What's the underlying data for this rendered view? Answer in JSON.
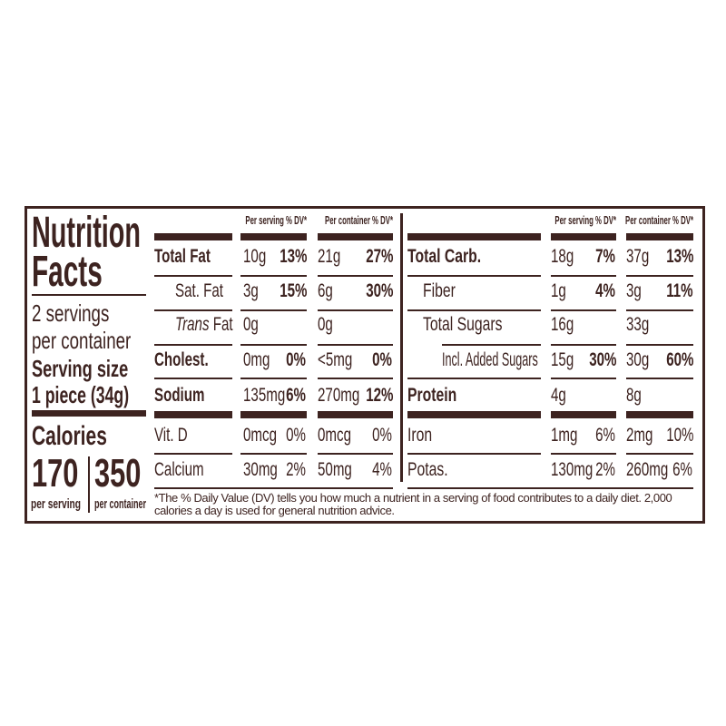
{
  "colors": {
    "ink": "#3d2320",
    "background": "#ffffff"
  },
  "left": {
    "title_line1": "Nutrition",
    "title_line2": "Facts",
    "servings_line1": "2 servings",
    "servings_line2": "per container",
    "serving_size_label": "Serving size",
    "serving_size_value": "1 piece (34g)",
    "calories_label": "Calories",
    "calories_per_serving": "170",
    "calories_per_container": "350",
    "per_serving_label": "per serving",
    "per_container_label": "per container"
  },
  "headers": {
    "per_serving": "Per serving % DV*",
    "per_container": "Per container % DV*"
  },
  "table_left": [
    {
      "label": "Total Fat",
      "bold": true,
      "indent": 0,
      "serving": "10g",
      "serving_dv": "13%",
      "container": "21g",
      "container_dv": "27%",
      "dv_bold": true
    },
    {
      "label": "Sat. Fat",
      "bold": false,
      "indent": 1,
      "serving": "3g",
      "serving_dv": "15%",
      "container": "6g",
      "container_dv": "30%",
      "dv_bold": true
    },
    {
      "label_italic": "Trans",
      "label": " Fat",
      "bold": false,
      "indent": 1,
      "serving": "0g",
      "serving_dv": "",
      "container": "0g",
      "container_dv": "",
      "dv_bold": true
    },
    {
      "label": "Cholest.",
      "bold": true,
      "indent": 0,
      "serving": "0mg",
      "serving_dv": "0%",
      "container": "<5mg",
      "container_dv": "0%",
      "dv_bold": true
    },
    {
      "label": "Sodium",
      "bold": true,
      "indent": 0,
      "serving": "135mg",
      "serving_dv": "6%",
      "container": "270mg",
      "container_dv": "12%",
      "dv_bold": true
    },
    {
      "label": "Vit. D",
      "bold": false,
      "indent": 0,
      "serving": "0mcg",
      "serving_dv": "0%",
      "container": "0mcg",
      "container_dv": "0%",
      "dv_bold": false
    },
    {
      "label": "Calcium",
      "bold": false,
      "indent": 0,
      "serving": "30mg",
      "serving_dv": "2%",
      "container": "50mg",
      "container_dv": "4%",
      "dv_bold": false
    }
  ],
  "table_right": [
    {
      "label": "Total Carb.",
      "bold": true,
      "indent": 0,
      "serving": "18g",
      "serving_dv": "7%",
      "container": "37g",
      "container_dv": "13%",
      "dv_bold": true
    },
    {
      "label": "Fiber",
      "bold": false,
      "indent": 1,
      "serving": "1g",
      "serving_dv": "4%",
      "container": "3g",
      "container_dv": "11%",
      "dv_bold": true
    },
    {
      "label": "Total Sugars",
      "bold": false,
      "indent": 1,
      "serving": "16g",
      "serving_dv": "",
      "container": "33g",
      "container_dv": "",
      "dv_bold": true
    },
    {
      "label": "Incl. Added Sugars",
      "bold": false,
      "indent": 2,
      "serving": "15g",
      "serving_dv": "30%",
      "container": "30g",
      "container_dv": "60%",
      "dv_bold": true
    },
    {
      "label": "Protein",
      "bold": true,
      "indent": 0,
      "serving": "4g",
      "serving_dv": "",
      "container": "8g",
      "container_dv": "",
      "dv_bold": true
    },
    {
      "label": "Iron",
      "bold": false,
      "indent": 0,
      "serving": "1mg",
      "serving_dv": "6%",
      "container": "2mg",
      "container_dv": "10%",
      "dv_bold": false
    },
    {
      "label": "Potas.",
      "bold": false,
      "indent": 0,
      "serving": "130mg",
      "serving_dv": "2%",
      "container": "260mg",
      "container_dv": "6%",
      "dv_bold": false
    }
  ],
  "footnote": "*The % Daily Value (DV) tells you how much a nutrient in a serving of food contributes to a daily diet. 2,000 calories a day is used for general nutrition advice."
}
